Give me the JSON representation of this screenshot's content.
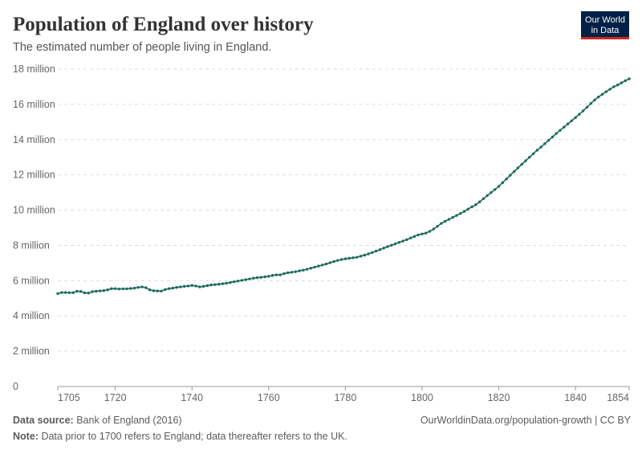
{
  "chart_data": {
    "type": "line",
    "title": "Population of England over history",
    "subtitle": "The estimated number of people living in England.",
    "logo": [
      "Our World",
      "in Data"
    ],
    "source_label": "Data source:",
    "source": "Bank of England (2016)",
    "link": "OurWorldinData.org/population-growth | CC BY",
    "note_label": "Note:",
    "note": "Data prior to 1700 refers to England; data thereafter refers to the UK.",
    "x": [
      1705,
      1706,
      1707,
      1708,
      1709,
      1710,
      1711,
      1712,
      1713,
      1714,
      1715,
      1716,
      1717,
      1718,
      1719,
      1720,
      1721,
      1722,
      1723,
      1724,
      1725,
      1726,
      1727,
      1728,
      1729,
      1730,
      1731,
      1732,
      1733,
      1734,
      1735,
      1736,
      1737,
      1738,
      1739,
      1740,
      1741,
      1742,
      1743,
      1744,
      1745,
      1746,
      1747,
      1748,
      1749,
      1750,
      1751,
      1752,
      1753,
      1754,
      1755,
      1756,
      1757,
      1758,
      1759,
      1760,
      1761,
      1762,
      1763,
      1764,
      1765,
      1766,
      1767,
      1768,
      1769,
      1770,
      1771,
      1772,
      1773,
      1774,
      1775,
      1776,
      1777,
      1778,
      1779,
      1780,
      1781,
      1782,
      1783,
      1784,
      1785,
      1786,
      1787,
      1788,
      1789,
      1790,
      1791,
      1792,
      1793,
      1794,
      1795,
      1796,
      1797,
      1798,
      1799,
      1800,
      1801,
      1802,
      1803,
      1804,
      1805,
      1806,
      1807,
      1808,
      1809,
      1810,
      1811,
      1812,
      1813,
      1814,
      1815,
      1816,
      1817,
      1818,
      1819,
      1820,
      1821,
      1822,
      1823,
      1824,
      1825,
      1826,
      1827,
      1828,
      1829,
      1830,
      1831,
      1832,
      1833,
      1834,
      1835,
      1836,
      1837,
      1838,
      1839,
      1840,
      1841,
      1842,
      1843,
      1844,
      1845,
      1846,
      1847,
      1848,
      1849,
      1850,
      1851,
      1852,
      1853,
      1854
    ],
    "series": [
      {
        "name": "England",
        "color": "#1d6b5c",
        "values": [
          5.27,
          5.33,
          5.33,
          5.32,
          5.32,
          5.4,
          5.39,
          5.31,
          5.3,
          5.38,
          5.4,
          5.42,
          5.44,
          5.48,
          5.55,
          5.55,
          5.53,
          5.54,
          5.54,
          5.56,
          5.58,
          5.62,
          5.65,
          5.6,
          5.48,
          5.43,
          5.42,
          5.41,
          5.5,
          5.55,
          5.58,
          5.62,
          5.65,
          5.68,
          5.7,
          5.73,
          5.7,
          5.65,
          5.68,
          5.72,
          5.76,
          5.78,
          5.8,
          5.83,
          5.86,
          5.9,
          5.94,
          5.98,
          6.02,
          6.06,
          6.1,
          6.14,
          6.17,
          6.19,
          6.22,
          6.25,
          6.3,
          6.33,
          6.33,
          6.4,
          6.45,
          6.48,
          6.51,
          6.56,
          6.6,
          6.65,
          6.71,
          6.77,
          6.83,
          6.89,
          6.95,
          7.02,
          7.09,
          7.15,
          7.2,
          7.24,
          7.27,
          7.3,
          7.33,
          7.39,
          7.45,
          7.52,
          7.6,
          7.68,
          7.76,
          7.85,
          7.93,
          8.01,
          8.09,
          8.17,
          8.25,
          8.33,
          8.42,
          8.51,
          8.6,
          8.65,
          8.7,
          8.8,
          8.93,
          9.08,
          9.25,
          9.37,
          9.48,
          9.59,
          9.7,
          9.81,
          9.93,
          10.06,
          10.19,
          10.31,
          10.47,
          10.65,
          10.83,
          11.0,
          11.17,
          11.35,
          11.56,
          11.77,
          11.98,
          12.19,
          12.4,
          12.6,
          12.8,
          13.0,
          13.2,
          13.4,
          13.58,
          13.77,
          13.96,
          14.15,
          14.35,
          14.53,
          14.71,
          14.89,
          15.07,
          15.25,
          15.44,
          15.63,
          15.84,
          16.05,
          16.25,
          16.42,
          16.57,
          16.72,
          16.86,
          17.0,
          17.1,
          17.22,
          17.34,
          17.45
        ]
      }
    ],
    "xlim": [
      1705,
      1854
    ],
    "xticks": [
      1705,
      1720,
      1740,
      1760,
      1780,
      1800,
      1820,
      1840,
      1854
    ],
    "ylim": [
      0,
      18
    ],
    "yticks": [
      {
        "value": 0,
        "label": "0"
      },
      {
        "value": 2,
        "label": "2 million"
      },
      {
        "value": 4,
        "label": "4 million"
      },
      {
        "value": 6,
        "label": "6 million"
      },
      {
        "value": 8,
        "label": "8 million"
      },
      {
        "value": 10,
        "label": "10 million"
      },
      {
        "value": 12,
        "label": "12 million"
      },
      {
        "value": 14,
        "label": "14 million"
      },
      {
        "value": 16,
        "label": "16 million"
      },
      {
        "value": 18,
        "label": "18 million"
      }
    ],
    "grid": true
  }
}
